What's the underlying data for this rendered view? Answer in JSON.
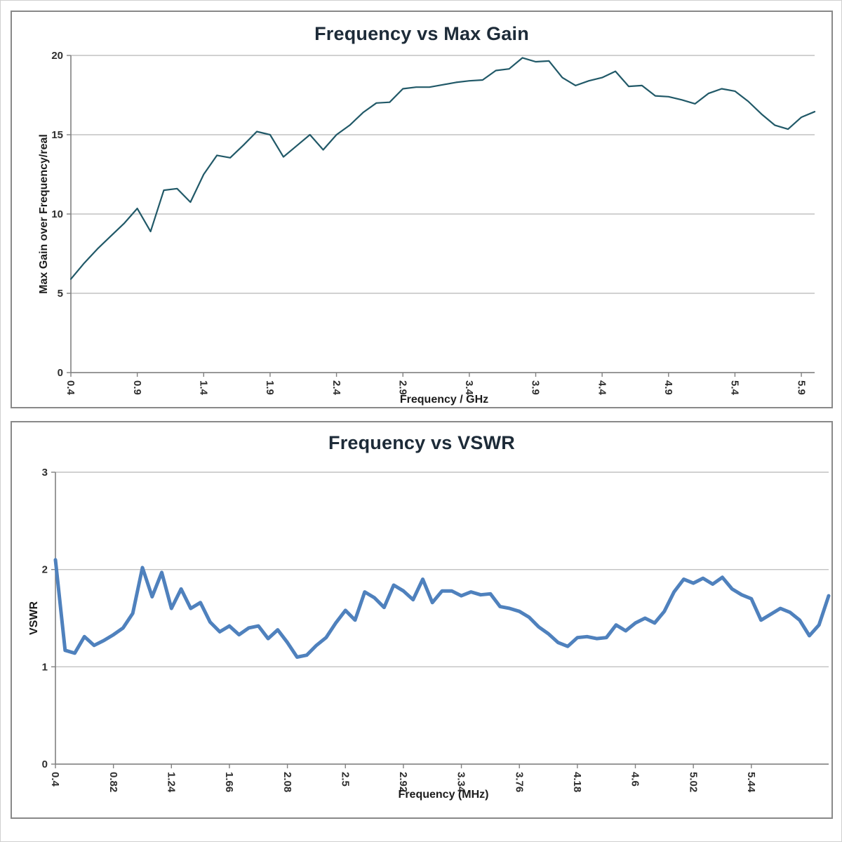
{
  "style": {
    "background": "#ffffff",
    "outer_border_color": "#cfcfcf",
    "box_border_color": "#898989",
    "gridline_color": "#c2c2c2",
    "axis_color": "#808080",
    "tick_text_color": "#2e2e2e",
    "title_color": "#1d2b38"
  },
  "chart_data": [
    {
      "type": "line",
      "title": "Frequency vs Max Gain",
      "xlabel": "Frequency / GHz",
      "ylabel": "Max Gain over Frequency/real",
      "ylim": [
        0,
        20
      ],
      "yticks": [
        0,
        5,
        10,
        15,
        20
      ],
      "grid": "horizontal",
      "legend": "none",
      "line_color": "#215968",
      "line_width": 2.2,
      "xtick_every": 5,
      "xtick_labels": [
        "0.4",
        "0.9",
        "1.4",
        "1.9",
        "2.4",
        "2.9",
        "3.4",
        "3.9",
        "4.4",
        "4.9",
        "5.4",
        "5.9"
      ],
      "x": [
        0.4,
        0.5,
        0.6,
        0.7,
        0.8,
        0.9,
        1.0,
        1.1,
        1.2,
        1.3,
        1.4,
        1.5,
        1.6,
        1.7,
        1.8,
        1.9,
        2.0,
        2.1,
        2.2,
        2.3,
        2.4,
        2.5,
        2.6,
        2.7,
        2.8,
        2.9,
        3.0,
        3.1,
        3.2,
        3.3,
        3.4,
        3.5,
        3.6,
        3.7,
        3.8,
        3.9,
        4.0,
        4.1,
        4.2,
        4.3,
        4.4,
        4.5,
        4.6,
        4.7,
        4.8,
        4.9,
        5.0,
        5.1,
        5.2,
        5.3,
        5.4,
        5.5,
        5.6,
        5.7,
        5.8,
        5.9,
        6.0
      ],
      "values": [
        5.9,
        6.9,
        7.8,
        8.6,
        9.4,
        10.35,
        8.9,
        11.5,
        11.6,
        10.75,
        12.5,
        13.7,
        13.55,
        14.35,
        15.2,
        15.0,
        13.6,
        14.3,
        15.0,
        14.05,
        15.0,
        15.6,
        16.4,
        17.0,
        17.05,
        17.9,
        18.0,
        18.0,
        18.15,
        18.3,
        18.4,
        18.45,
        19.05,
        19.15,
        19.85,
        19.6,
        19.65,
        18.6,
        18.1,
        18.4,
        18.6,
        19.0,
        18.05,
        18.1,
        17.45,
        17.4,
        17.2,
        16.95,
        17.6,
        17.9,
        17.75,
        17.1,
        16.3,
        15.6,
        15.35,
        16.1,
        16.45
      ]
    },
    {
      "type": "line",
      "title": "Frequency vs VSWR",
      "xlabel": "Frequency (MHz)",
      "ylabel": "VSWR",
      "ylim": [
        0,
        3
      ],
      "yticks": [
        0,
        1,
        2,
        3
      ],
      "grid": "horizontal",
      "legend": "none",
      "line_color": "#4f81bd",
      "line_width": 5,
      "xtick_every": 6,
      "xtick_labels": [
        "0.4",
        "0.82",
        "1.24",
        "1.66",
        "2.08",
        "2.5",
        "2.92",
        "3.34",
        "3.76",
        "4.18",
        "4.6",
        "5.02",
        "5.44"
      ],
      "x": [
        0.4,
        0.47,
        0.54,
        0.61,
        0.68,
        0.75,
        0.82,
        0.89,
        0.96,
        1.03,
        1.1,
        1.17,
        1.24,
        1.31,
        1.38,
        1.45,
        1.52,
        1.59,
        1.66,
        1.73,
        1.8,
        1.87,
        1.94,
        2.01,
        2.08,
        2.15,
        2.22,
        2.29,
        2.36,
        2.43,
        2.5,
        2.57,
        2.64,
        2.71,
        2.78,
        2.85,
        2.92,
        2.99,
        3.06,
        3.13,
        3.2,
        3.27,
        3.34,
        3.41,
        3.48,
        3.55,
        3.62,
        3.69,
        3.76,
        3.83,
        3.9,
        3.97,
        4.04,
        4.11,
        4.18,
        4.25,
        4.32,
        4.39,
        4.46,
        4.53,
        4.6,
        4.67,
        4.74,
        4.81,
        4.88,
        4.95,
        5.02,
        5.09,
        5.16,
        5.23,
        5.3,
        5.37,
        5.44,
        5.51,
        5.58,
        5.65,
        5.72,
        5.79,
        5.86,
        5.93,
        6.0
      ],
      "values": [
        2.1,
        1.17,
        1.14,
        1.31,
        1.22,
        1.27,
        1.33,
        1.4,
        1.55,
        2.02,
        1.72,
        1.97,
        1.6,
        1.8,
        1.6,
        1.66,
        1.46,
        1.36,
        1.42,
        1.33,
        1.4,
        1.42,
        1.29,
        1.38,
        1.25,
        1.1,
        1.12,
        1.22,
        1.3,
        1.45,
        1.58,
        1.48,
        1.77,
        1.71,
        1.61,
        1.84,
        1.78,
        1.69,
        1.9,
        1.66,
        1.78,
        1.78,
        1.73,
        1.77,
        1.74,
        1.75,
        1.62,
        1.6,
        1.57,
        1.51,
        1.41,
        1.34,
        1.25,
        1.21,
        1.3,
        1.31,
        1.29,
        1.3,
        1.43,
        1.37,
        1.45,
        1.5,
        1.45,
        1.57,
        1.77,
        1.9,
        1.86,
        1.91,
        1.85,
        1.92,
        1.8,
        1.74,
        1.7,
        1.48,
        1.54,
        1.6,
        1.56,
        1.48,
        1.32,
        1.43,
        1.73
      ]
    }
  ]
}
